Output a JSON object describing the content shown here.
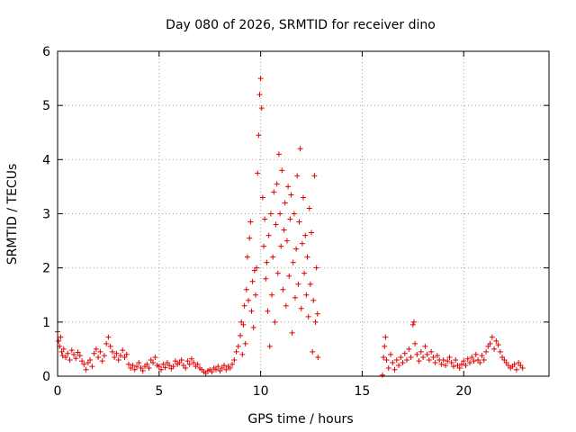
{
  "chart_data": {
    "type": "scatter",
    "title": "Day 080 of 2026, SRMTID for receiver dino",
    "xlabel": "GPS time / hours",
    "ylabel": "SRMTID / TECUs",
    "xlim": [
      0,
      24.2
    ],
    "ylim": [
      0,
      6
    ],
    "xticks": [
      0,
      5,
      10,
      15,
      20
    ],
    "yticks": [
      0,
      1,
      2,
      3,
      4,
      5,
      6
    ],
    "xtick_labels": [
      "0",
      "5",
      "10",
      "15",
      "20"
    ],
    "ytick_labels": [
      "0",
      "1",
      "2",
      "3",
      "4",
      "5",
      "6"
    ],
    "grid": true,
    "marker": "+",
    "marker_color": "#e00000",
    "series": [
      {
        "name": "SRMTID",
        "points": [
          [
            0.0,
            0.82
          ],
          [
            0.05,
            0.65
          ],
          [
            0.1,
            0.55
          ],
          [
            0.15,
            0.72
          ],
          [
            0.2,
            0.45
          ],
          [
            0.25,
            0.38
          ],
          [
            0.3,
            0.5
          ],
          [
            0.4,
            0.35
          ],
          [
            0.5,
            0.42
          ],
          [
            0.6,
            0.3
          ],
          [
            0.7,
            0.48
          ],
          [
            0.8,
            0.4
          ],
          [
            0.9,
            0.33
          ],
          [
            1.0,
            0.44
          ],
          [
            1.1,
            0.38
          ],
          [
            1.2,
            0.28
          ],
          [
            1.3,
            0.22
          ],
          [
            1.4,
            0.12
          ],
          [
            1.5,
            0.25
          ],
          [
            1.6,
            0.3
          ],
          [
            1.7,
            0.18
          ],
          [
            1.8,
            0.42
          ],
          [
            1.9,
            0.5
          ],
          [
            2.0,
            0.35
          ],
          [
            2.1,
            0.45
          ],
          [
            2.2,
            0.28
          ],
          [
            2.3,
            0.38
          ],
          [
            2.4,
            0.6
          ],
          [
            2.5,
            0.72
          ],
          [
            2.6,
            0.55
          ],
          [
            2.7,
            0.45
          ],
          [
            2.8,
            0.35
          ],
          [
            2.9,
            0.42
          ],
          [
            3.0,
            0.3
          ],
          [
            3.1,
            0.38
          ],
          [
            3.2,
            0.48
          ],
          [
            3.3,
            0.35
          ],
          [
            3.4,
            0.4
          ],
          [
            3.5,
            0.22
          ],
          [
            3.6,
            0.15
          ],
          [
            3.7,
            0.2
          ],
          [
            3.8,
            0.12
          ],
          [
            3.9,
            0.18
          ],
          [
            4.0,
            0.25
          ],
          [
            4.1,
            0.15
          ],
          [
            4.2,
            0.1
          ],
          [
            4.3,
            0.18
          ],
          [
            4.4,
            0.22
          ],
          [
            4.5,
            0.15
          ],
          [
            4.6,
            0.3
          ],
          [
            4.7,
            0.25
          ],
          [
            4.8,
            0.35
          ],
          [
            4.9,
            0.2
          ],
          [
            5.0,
            0.18
          ],
          [
            5.1,
            0.12
          ],
          [
            5.2,
            0.22
          ],
          [
            5.3,
            0.16
          ],
          [
            5.4,
            0.25
          ],
          [
            5.5,
            0.2
          ],
          [
            5.6,
            0.14
          ],
          [
            5.7,
            0.18
          ],
          [
            5.8,
            0.28
          ],
          [
            5.9,
            0.22
          ],
          [
            6.0,
            0.25
          ],
          [
            6.1,
            0.3
          ],
          [
            6.2,
            0.2
          ],
          [
            6.3,
            0.15
          ],
          [
            6.4,
            0.28
          ],
          [
            6.5,
            0.22
          ],
          [
            6.6,
            0.32
          ],
          [
            6.7,
            0.25
          ],
          [
            6.8,
            0.18
          ],
          [
            6.9,
            0.22
          ],
          [
            7.0,
            0.15
          ],
          [
            7.1,
            0.12
          ],
          [
            7.2,
            0.08
          ],
          [
            7.3,
            0.05
          ],
          [
            7.4,
            0.1
          ],
          [
            7.5,
            0.12
          ],
          [
            7.6,
            0.08
          ],
          [
            7.7,
            0.15
          ],
          [
            7.8,
            0.12
          ],
          [
            7.9,
            0.18
          ],
          [
            8.0,
            0.1
          ],
          [
            8.1,
            0.15
          ],
          [
            8.2,
            0.2
          ],
          [
            8.3,
            0.12
          ],
          [
            8.4,
            0.18
          ],
          [
            8.5,
            0.15
          ],
          [
            8.6,
            0.22
          ],
          [
            8.7,
            0.3
          ],
          [
            8.8,
            0.45
          ],
          [
            8.9,
            0.55
          ],
          [
            9.0,
            0.75
          ],
          [
            9.05,
            1.0
          ],
          [
            9.1,
            0.4
          ],
          [
            9.15,
            0.95
          ],
          [
            9.2,
            1.3
          ],
          [
            9.25,
            0.6
          ],
          [
            9.3,
            1.6
          ],
          [
            9.35,
            2.2
          ],
          [
            9.4,
            1.4
          ],
          [
            9.45,
            2.55
          ],
          [
            9.5,
            2.85
          ],
          [
            9.55,
            1.2
          ],
          [
            9.6,
            1.75
          ],
          [
            9.65,
            0.9
          ],
          [
            9.7,
            1.95
          ],
          [
            9.75,
            1.5
          ],
          [
            9.8,
            2.0
          ],
          [
            9.85,
            3.75
          ],
          [
            9.9,
            4.45
          ],
          [
            9.95,
            5.2
          ],
          [
            10.0,
            5.5
          ],
          [
            10.05,
            4.95
          ],
          [
            10.1,
            3.3
          ],
          [
            10.15,
            2.4
          ],
          [
            10.2,
            2.9
          ],
          [
            10.25,
            1.8
          ],
          [
            10.3,
            2.1
          ],
          [
            10.35,
            1.2
          ],
          [
            10.4,
            2.6
          ],
          [
            10.45,
            0.55
          ],
          [
            10.5,
            3.0
          ],
          [
            10.55,
            1.5
          ],
          [
            10.6,
            2.2
          ],
          [
            10.65,
            3.4
          ],
          [
            10.7,
            1.0
          ],
          [
            10.75,
            2.8
          ],
          [
            10.8,
            3.55
          ],
          [
            10.85,
            1.9
          ],
          [
            10.9,
            4.1
          ],
          [
            10.95,
            3.0
          ],
          [
            11.0,
            2.4
          ],
          [
            11.05,
            3.8
          ],
          [
            11.1,
            1.6
          ],
          [
            11.15,
            2.7
          ],
          [
            11.2,
            3.2
          ],
          [
            11.25,
            1.3
          ],
          [
            11.3,
            2.5
          ],
          [
            11.35,
            3.5
          ],
          [
            11.4,
            1.85
          ],
          [
            11.45,
            2.9
          ],
          [
            11.5,
            3.35
          ],
          [
            11.55,
            0.8
          ],
          [
            11.6,
            2.1
          ],
          [
            11.65,
            3.0
          ],
          [
            11.7,
            1.45
          ],
          [
            11.75,
            2.35
          ],
          [
            11.8,
            3.7
          ],
          [
            11.85,
            1.7
          ],
          [
            11.9,
            2.85
          ],
          [
            11.95,
            4.2
          ],
          [
            12.0,
            1.25
          ],
          [
            12.05,
            2.45
          ],
          [
            12.1,
            3.3
          ],
          [
            12.15,
            1.9
          ],
          [
            12.2,
            2.6
          ],
          [
            12.25,
            1.5
          ],
          [
            12.3,
            2.2
          ],
          [
            12.35,
            1.1
          ],
          [
            12.4,
            3.1
          ],
          [
            12.45,
            1.7
          ],
          [
            12.5,
            2.65
          ],
          [
            12.55,
            0.45
          ],
          [
            12.6,
            1.4
          ],
          [
            12.65,
            3.7
          ],
          [
            12.7,
            1.0
          ],
          [
            12.75,
            2.0
          ],
          [
            12.8,
            1.15
          ],
          [
            12.82,
            0.35
          ],
          [
            16.0,
            0.02
          ],
          [
            16.05,
            0.35
          ],
          [
            16.1,
            0.55
          ],
          [
            16.15,
            0.72
          ],
          [
            16.2,
            0.3
          ],
          [
            16.3,
            0.15
          ],
          [
            16.4,
            0.4
          ],
          [
            16.5,
            0.25
          ],
          [
            16.6,
            0.12
          ],
          [
            16.7,
            0.3
          ],
          [
            16.8,
            0.2
          ],
          [
            16.9,
            0.35
          ],
          [
            17.0,
            0.25
          ],
          [
            17.1,
            0.42
          ],
          [
            17.2,
            0.3
          ],
          [
            17.3,
            0.5
          ],
          [
            17.4,
            0.35
          ],
          [
            17.5,
            0.95
          ],
          [
            17.55,
            1.0
          ],
          [
            17.6,
            0.6
          ],
          [
            17.7,
            0.4
          ],
          [
            17.8,
            0.28
          ],
          [
            17.9,
            0.45
          ],
          [
            18.0,
            0.35
          ],
          [
            18.1,
            0.55
          ],
          [
            18.2,
            0.4
          ],
          [
            18.3,
            0.3
          ],
          [
            18.4,
            0.45
          ],
          [
            18.5,
            0.35
          ],
          [
            18.6,
            0.25
          ],
          [
            18.7,
            0.38
          ],
          [
            18.8,
            0.3
          ],
          [
            18.9,
            0.22
          ],
          [
            19.0,
            0.3
          ],
          [
            19.1,
            0.2
          ],
          [
            19.2,
            0.28
          ],
          [
            19.3,
            0.35
          ],
          [
            19.4,
            0.25
          ],
          [
            19.5,
            0.18
          ],
          [
            19.6,
            0.3
          ],
          [
            19.7,
            0.2
          ],
          [
            19.8,
            0.15
          ],
          [
            19.9,
            0.22
          ],
          [
            20.0,
            0.28
          ],
          [
            20.1,
            0.2
          ],
          [
            20.2,
            0.32
          ],
          [
            20.3,
            0.25
          ],
          [
            20.4,
            0.35
          ],
          [
            20.5,
            0.28
          ],
          [
            20.6,
            0.4
          ],
          [
            20.7,
            0.3
          ],
          [
            20.8,
            0.25
          ],
          [
            20.9,
            0.38
          ],
          [
            21.0,
            0.3
          ],
          [
            21.1,
            0.45
          ],
          [
            21.2,
            0.55
          ],
          [
            21.3,
            0.6
          ],
          [
            21.4,
            0.72
          ],
          [
            21.5,
            0.5
          ],
          [
            21.6,
            0.65
          ],
          [
            21.7,
            0.58
          ],
          [
            21.8,
            0.45
          ],
          [
            21.9,
            0.35
          ],
          [
            22.0,
            0.3
          ],
          [
            22.1,
            0.25
          ],
          [
            22.2,
            0.2
          ],
          [
            22.3,
            0.15
          ],
          [
            22.4,
            0.18
          ],
          [
            22.5,
            0.22
          ],
          [
            22.6,
            0.12
          ],
          [
            22.7,
            0.25
          ],
          [
            22.8,
            0.2
          ],
          [
            22.9,
            0.15
          ]
        ]
      }
    ]
  }
}
